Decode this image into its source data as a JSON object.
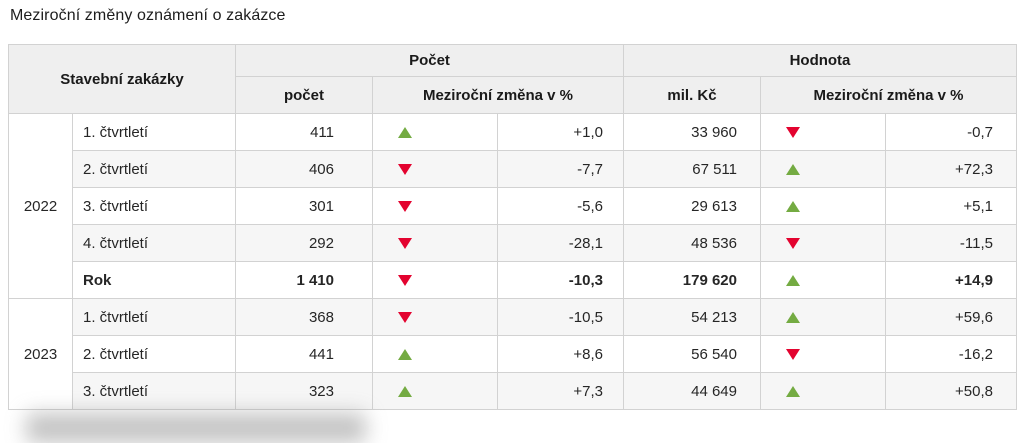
{
  "page_title": "Meziroční změny oznámení o zakázce",
  "chart_data": {
    "type": "table",
    "title": "Meziroční změny oznámení o zakázce",
    "header": {
      "row_group_label": "Stavební zakázky",
      "group_pocet": "Počet",
      "group_hodnota": "Hodnota",
      "sub_pocet": "počet",
      "sub_pocet_change": "Meziroční změna v %",
      "sub_milkc": "mil. Kč",
      "sub_hodnota_change": "Meziroční změna v %"
    },
    "trend_icons": {
      "up": "green-up-triangle",
      "down": "red-down-triangle"
    },
    "rows": [
      {
        "year": "2022",
        "year_rowspan": 5,
        "label": "1. čtvrtletí",
        "pocet": "411",
        "pocet_trend": "up",
        "pocet_change": "+1,0",
        "hodnota_milkc": "33 960",
        "hodnota_trend": "down",
        "hodnota_change": "-0,7",
        "bold": false
      },
      {
        "label": "2. čtvrtletí",
        "pocet": "406",
        "pocet_trend": "down",
        "pocet_change": "-7,7",
        "hodnota_milkc": "67 511",
        "hodnota_trend": "up",
        "hodnota_change": "+72,3",
        "bold": false
      },
      {
        "label": "3. čtvrtletí",
        "pocet": "301",
        "pocet_trend": "down",
        "pocet_change": "-5,6",
        "hodnota_milkc": "29 613",
        "hodnota_trend": "up",
        "hodnota_change": "+5,1",
        "bold": false
      },
      {
        "label": "4. čtvrtletí",
        "pocet": "292",
        "pocet_trend": "down",
        "pocet_change": "-28,1",
        "hodnota_milkc": "48 536",
        "hodnota_trend": "down",
        "hodnota_change": "-11,5",
        "bold": false
      },
      {
        "label": "Rok",
        "pocet": "1 410",
        "pocet_trend": "down",
        "pocet_change": "-10,3",
        "hodnota_milkc": "179 620",
        "hodnota_trend": "up",
        "hodnota_change": "+14,9",
        "bold": true
      },
      {
        "year": "2023",
        "year_rowspan": 3,
        "label": "1. čtvrtletí",
        "pocet": "368",
        "pocet_trend": "down",
        "pocet_change": "-10,5",
        "hodnota_milkc": "54 213",
        "hodnota_trend": "up",
        "hodnota_change": "+59,6",
        "bold": false
      },
      {
        "label": "2. čtvrtletí",
        "pocet": "441",
        "pocet_trend": "up",
        "pocet_change": "+8,6",
        "hodnota_milkc": "56 540",
        "hodnota_trend": "down",
        "hodnota_change": "-16,2",
        "bold": false
      },
      {
        "label": "3. čtvrtletí",
        "pocet": "323",
        "pocet_trend": "up",
        "pocet_change": "+7,3",
        "hodnota_milkc": "44 649",
        "hodnota_trend": "up",
        "hodnota_change": "+50,8",
        "bold": false
      }
    ]
  },
  "colors": {
    "up_arrow": "#74ab42",
    "down_arrow": "#e3032f",
    "header_bg": "#efefef",
    "row_stripe": "#f6f6f6",
    "border": "#d2d2d2",
    "text": "#262626"
  }
}
